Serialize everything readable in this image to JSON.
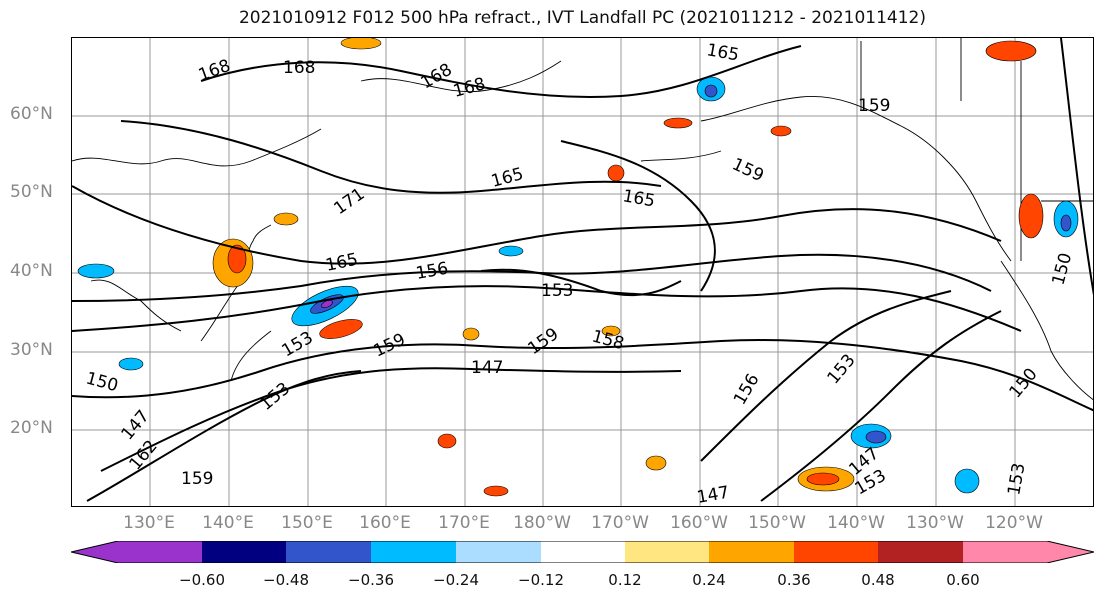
{
  "title": "2021010912 F012 500 hPa refract., IVT Landfall PC (2021011212 - 2021011412)",
  "map": {
    "lat_labels": [
      "60°N",
      "50°N",
      "40°N",
      "30°N",
      "20°N"
    ],
    "lon_labels": [
      "130°E",
      "140°E",
      "150°E",
      "160°E",
      "170°E",
      "180°W",
      "170°W",
      "160°W",
      "150°W",
      "140°W",
      "130°W",
      "120°W"
    ],
    "contour_labels": [
      "168",
      "168",
      "168",
      "168",
      "165",
      "159",
      "165",
      "165",
      "171",
      "159",
      "165",
      "156",
      "153",
      "153",
      "159",
      "159",
      "158",
      "147",
      "156",
      "153",
      "150",
      "150",
      "147",
      "162",
      "153",
      "159",
      "147",
      "153",
      "153",
      "147",
      "150"
    ],
    "grid_color": "#999999",
    "axis_label_color": "#888888"
  },
  "colorbar": {
    "colors": [
      "#9933cc",
      "#000080",
      "#3355cc",
      "#00bbff",
      "#aaddff",
      "#ffffff",
      "#ffe680",
      "#ffa500",
      "#ff4500",
      "#b22222",
      "#ff88aa"
    ],
    "tick_labels": [
      "−0.60",
      "−0.48",
      "−0.36",
      "−0.24",
      "−0.12",
      "0.12",
      "0.24",
      "0.36",
      "0.48",
      "0.60"
    ]
  }
}
